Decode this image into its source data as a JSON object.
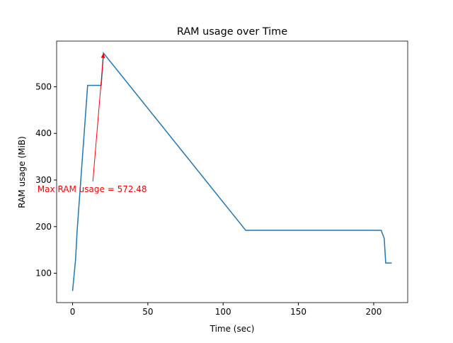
{
  "chart_data": {
    "type": "line",
    "title": "RAM usage over Time",
    "xlabel": "Time (sec)",
    "ylabel": "RAM usage (MiB)",
    "x": [
      0,
      2,
      3,
      10,
      19,
      20.5,
      115,
      205,
      207,
      208,
      212
    ],
    "series": [
      {
        "name": "RAM usage",
        "color": "#1f77b4",
        "values": [
          62,
          130,
          190,
          503,
          503,
          572.48,
          192,
          192,
          175,
          122,
          122
        ]
      }
    ],
    "xlim": [
      -10.6,
      222.6
    ],
    "xticks": [
      0,
      50,
      100,
      150,
      200
    ],
    "ylim": [
      37,
      598
    ],
    "yticks": [
      100,
      200,
      300,
      400,
      500
    ],
    "annotation": {
      "text": "Max RAM usage = 572.48",
      "color": "#ff0000",
      "xy": [
        20.5,
        572.48
      ],
      "xytext": [
        13,
        280
      ]
    }
  }
}
